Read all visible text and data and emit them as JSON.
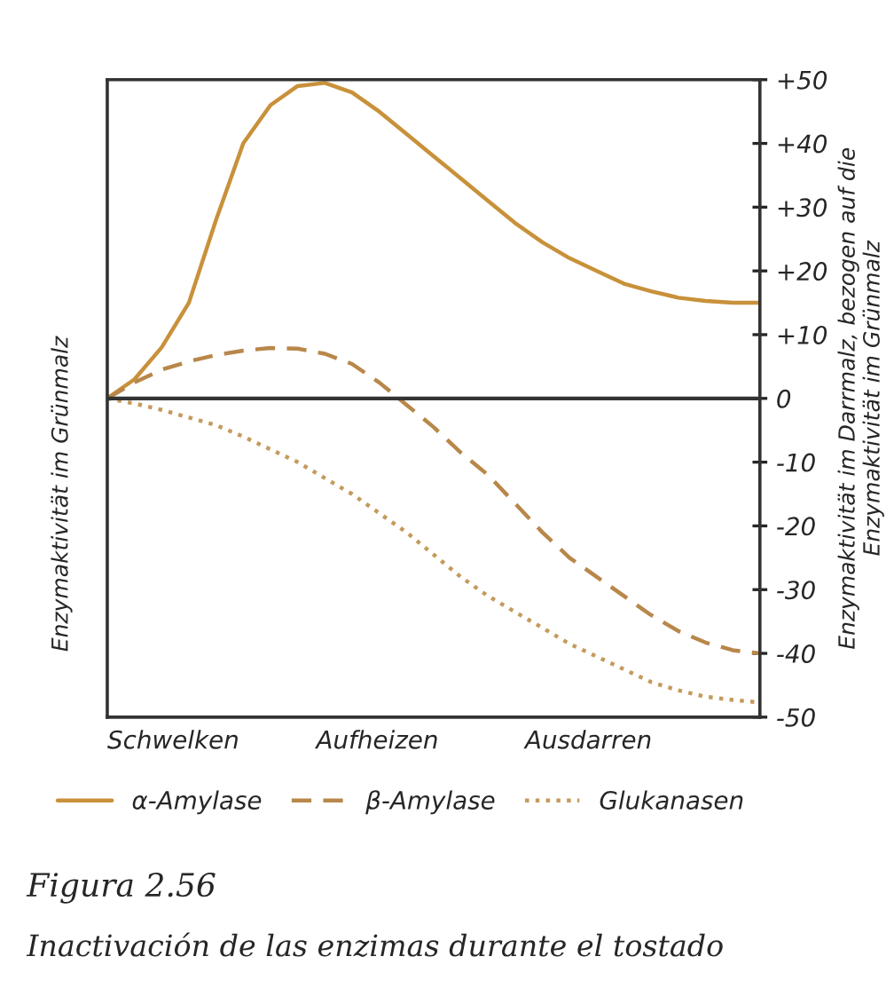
{
  "chart_data": {
    "type": "line",
    "title": "Figura 2.56",
    "subtitle": "Inactivación de las enzimas durante el tostado",
    "ylabel": "Enzymaktivität im Darrmalz, bezogen auf die\nEnzymaktivität im Grünmalz",
    "categories": [
      null,
      null,
      null,
      null,
      null,
      null,
      null,
      null,
      null,
      null,
      null,
      null,
      null,
      null,
      null,
      null,
      null,
      null,
      null,
      null,
      null,
      null,
      null,
      null,
      null
    ],
    "series": [
      {
        "name": "α-Amylase",
        "color": "#c8913a",
        "line_style": "solid",
        "values": [
          0,
          3,
          8,
          15,
          28,
          40,
          46,
          49,
          49.5,
          48,
          45,
          41.5,
          38,
          34.5,
          31,
          27.5,
          24.5,
          22,
          20,
          18,
          16.8,
          15.8,
          15.3,
          15,
          15
        ]
      },
      {
        "name": "β-Amylase",
        "color": "#b8874a",
        "line_style": "dashed",
        "values": [
          0,
          2.5,
          4.5,
          5.8,
          6.8,
          7.5,
          7.9,
          7.8,
          7,
          5.4,
          2.5,
          -1,
          -4.5,
          -8.5,
          -12,
          -16.5,
          -21,
          -25,
          -28,
          -31,
          -34,
          -36.5,
          -38.3,
          -39.5,
          -40
        ]
      },
      {
        "name": "Glukanasen",
        "color": "#c49a5c",
        "line_style": "dotted",
        "values": [
          0,
          -0.8,
          -1.8,
          -3,
          -4.2,
          -6,
          -8,
          -10,
          -12.5,
          -15,
          -18,
          -21,
          -24.5,
          -28,
          -31,
          -33.5,
          -36,
          -38.5,
          -40.5,
          -42.5,
          -44.5,
          -45.8,
          -46.8,
          -47.3,
          -47.7
        ]
      }
    ],
    "ylim": [
      -50,
      50
    ],
    "yticks": [
      {
        "value": 50,
        "label": "+50"
      },
      {
        "value": 40,
        "label": "+40"
      },
      {
        "value": 30,
        "label": "+30"
      },
      {
        "value": 20,
        "label": "+20"
      },
      {
        "value": 10,
        "label": "+10"
      },
      0,
      -10,
      -20,
      -30,
      -40,
      -50
    ],
    "ref_lines": [
      {
        "axis": "y",
        "value": 0,
        "color": "#333333"
      }
    ],
    "annotations": [
      "Enzymaktivität im Grünmalz",
      "Schwelken",
      "Aufheizen",
      "Ausdarren"
    ],
    "tick_labels": "y",
    "grid": false,
    "legend": "bottom"
  }
}
